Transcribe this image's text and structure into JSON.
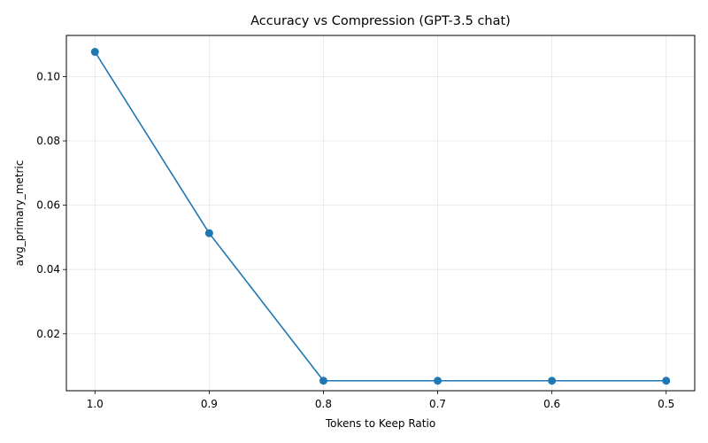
{
  "chart_data": {
    "type": "line",
    "title": "Accuracy vs Compression (GPT-3.5 chat)",
    "xlabel": "Tokens to Keep Ratio",
    "ylabel": "avg_primary_metric",
    "x": [
      1.0,
      0.9,
      0.8,
      0.7,
      0.6,
      0.5
    ],
    "x_tick_labels": [
      "1.0",
      "0.9",
      "0.8",
      "0.7",
      "0.6",
      "0.5"
    ],
    "x_reversed": true,
    "xlim": [
      1.025,
      0.475
    ],
    "ylim": [
      0.0023,
      0.1128
    ],
    "y_ticks": [
      0.02,
      0.04,
      0.06,
      0.08,
      0.1
    ],
    "y_tick_labels": [
      "0.02",
      "0.04",
      "0.06",
      "0.08",
      "0.10"
    ],
    "grid": true,
    "series": [
      {
        "values": [
          0.1077,
          0.0513,
          0.0054,
          0.0054,
          0.0054,
          0.0054
        ],
        "color": "#1f77b4",
        "marker": "circle"
      }
    ]
  }
}
